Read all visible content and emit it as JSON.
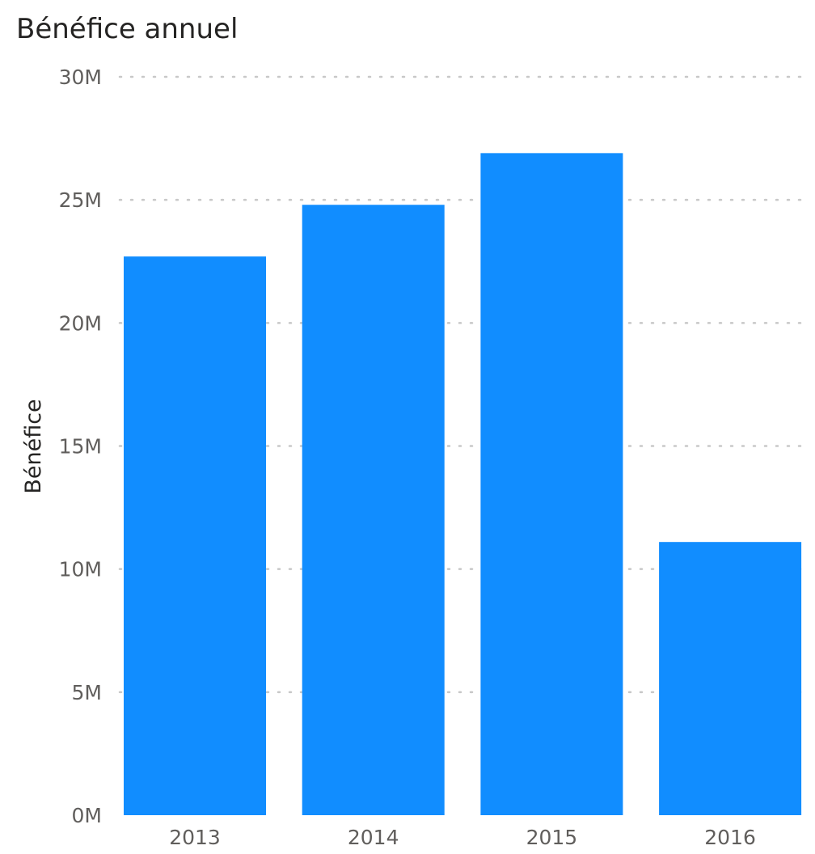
{
  "chart_data": {
    "type": "bar",
    "title": "Bénéfice annuel",
    "xlabel": "",
    "ylabel": "Bénéfice",
    "categories": [
      "2013",
      "2014",
      "2015",
      "2016"
    ],
    "values": [
      22.7,
      24.8,
      26.9,
      11.1
    ],
    "unit": "M",
    "ylim": [
      0,
      30
    ],
    "yticks": [
      "0M",
      "5M",
      "10M",
      "15M",
      "20M",
      "25M",
      "30M"
    ],
    "grid": true,
    "legend": "none",
    "colors": {
      "bar": "#118DFF",
      "grid": "#C8C8C8",
      "tick_text": "#605E5C",
      "axis_title": "#252423"
    }
  }
}
